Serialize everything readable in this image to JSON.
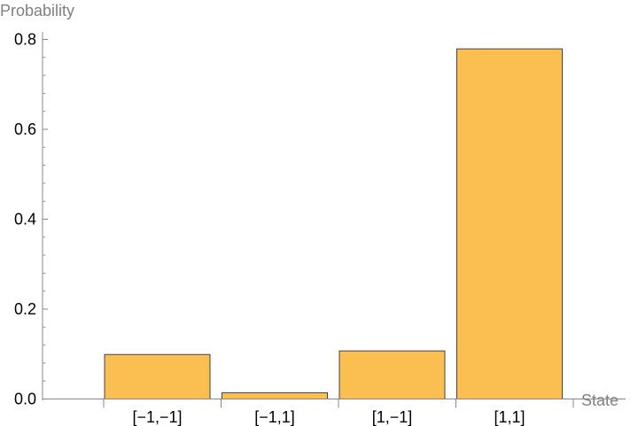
{
  "chart_data": {
    "type": "bar",
    "xlabel": "State",
    "ylabel": "Probability",
    "categories": [
      "[−1,−1]",
      "[−1,1]",
      "[1,−1]",
      "[1,1]"
    ],
    "values": [
      0.099,
      0.014,
      0.107,
      0.779
    ],
    "ylim": [
      0,
      0.8
    ],
    "yticks": [
      "0.0",
      "0.2",
      "0.4",
      "0.6",
      "0.8"
    ],
    "grid": false,
    "bar_color": "#fbbf51",
    "bar_edge_color": "#444444"
  }
}
